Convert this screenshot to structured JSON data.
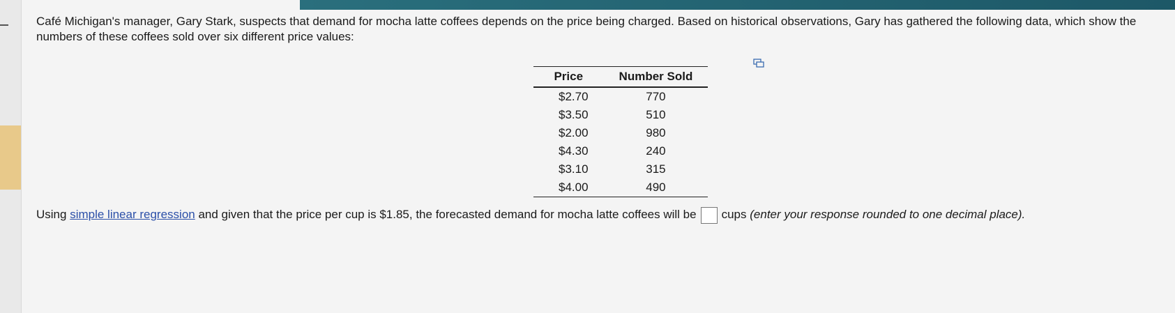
{
  "problem": {
    "intro": "Café Michigan's manager, Gary Stark, suspects that demand for mocha latte coffees depends on the price being charged. Based on historical observations, Gary has gathered the following data, which show the numbers of these coffees sold over six different price values:",
    "table": {
      "headers": [
        "Price",
        "Number Sold"
      ],
      "rows": [
        [
          "$2.70",
          770
        ],
        [
          "$3.50",
          510
        ],
        [
          "$2.00",
          980
        ],
        [
          "$4.30",
          240
        ],
        [
          "$3.10",
          315
        ],
        [
          "$4.00",
          490
        ]
      ]
    },
    "question": {
      "before_link": "Using",
      "link": "simple linear regression",
      "middle": "and given that the price per cup is $1.85, the forecasted demand for mocha latte coffees will be",
      "after_box": "cups",
      "note": "(enter your response rounded to one decimal place)."
    }
  }
}
